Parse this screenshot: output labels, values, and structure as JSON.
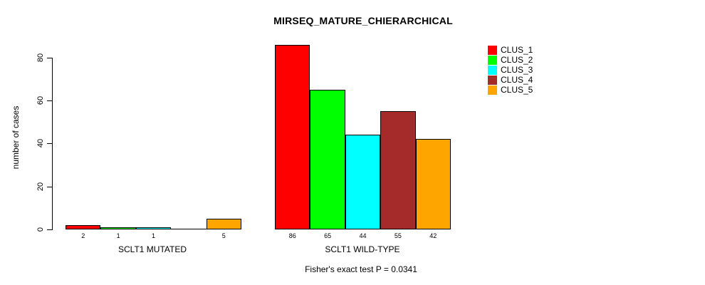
{
  "chart_data": {
    "type": "bar",
    "title": "MIRSEQ_MATURE_CHIERARCHICAL",
    "xlabel": "",
    "ylabel": "number of cases",
    "ylim": [
      0,
      86
    ],
    "yticks": [
      0,
      20,
      40,
      60,
      80
    ],
    "grid": false,
    "legend_position": "top-right",
    "categories": [
      "SCLT1 MUTATED",
      "SCLT1 WILD-TYPE"
    ],
    "groups": [
      {
        "label": "SCLT1 MUTATED",
        "values": [
          2,
          1,
          1,
          0,
          5
        ],
        "bar_labels": [
          "2",
          "1",
          "1",
          "",
          "5"
        ]
      },
      {
        "label": "SCLT1 WILD-TYPE",
        "values": [
          86,
          65,
          44,
          55,
          42
        ],
        "bar_labels": [
          "86",
          "65",
          "44",
          "55",
          "42"
        ]
      }
    ],
    "series": [
      {
        "name": "CLUS_1",
        "color": "#FF0000",
        "values": [
          2,
          86
        ]
      },
      {
        "name": "CLUS_2",
        "color": "#00FF00",
        "values": [
          1,
          65
        ]
      },
      {
        "name": "CLUS_3",
        "color": "#00FFFF",
        "values": [
          1,
          44
        ]
      },
      {
        "name": "CLUS_4",
        "color": "#A52A2A",
        "values": [
          0,
          55
        ]
      },
      {
        "name": "CLUS_5",
        "color": "#FFA500",
        "values": [
          5,
          42
        ]
      }
    ],
    "annotation": "Fisher's exact test P = 0.0341"
  }
}
